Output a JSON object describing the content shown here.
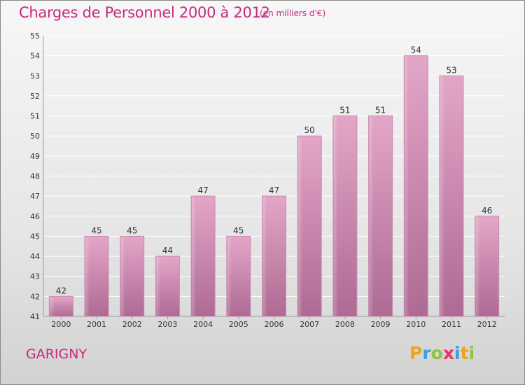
{
  "chart_data": {
    "type": "bar",
    "title": "Charges de Personnel 2000 à 2012",
    "subtitle": "(en milliers d'€)",
    "categories": [
      "2000",
      "2001",
      "2002",
      "2003",
      "2004",
      "2005",
      "2006",
      "2007",
      "2008",
      "2009",
      "2010",
      "2011",
      "2012"
    ],
    "values": [
      42,
      45,
      45,
      44,
      47,
      45,
      47,
      50,
      51,
      51,
      54,
      53,
      46
    ],
    "ylim": [
      41,
      55
    ],
    "yticks": [
      41,
      42,
      43,
      44,
      45,
      46,
      47,
      48,
      49,
      50,
      51,
      52,
      53,
      54,
      55
    ],
    "ytick_labels": [
      "41",
      "42",
      "43",
      "44",
      "45",
      "46",
      "47",
      "48",
      "49",
      "50",
      "51",
      "52",
      "53",
      "54",
      "55"
    ],
    "grid": true,
    "bar_color": "#d98fb8"
  },
  "footer": {
    "city": "GARIGNY",
    "logo_letters": [
      "P",
      "r",
      "o",
      "x",
      "i",
      "t",
      "i"
    ],
    "logo_colors": [
      "#f0a21b",
      "#3aa0d8",
      "#8cc63f",
      "#e8336b",
      "#3aa0d8",
      "#f0a21b",
      "#8cc63f"
    ]
  },
  "colors": {
    "accent": "#c7297f",
    "grid": "#ffffff",
    "axis_text": "#333333"
  }
}
